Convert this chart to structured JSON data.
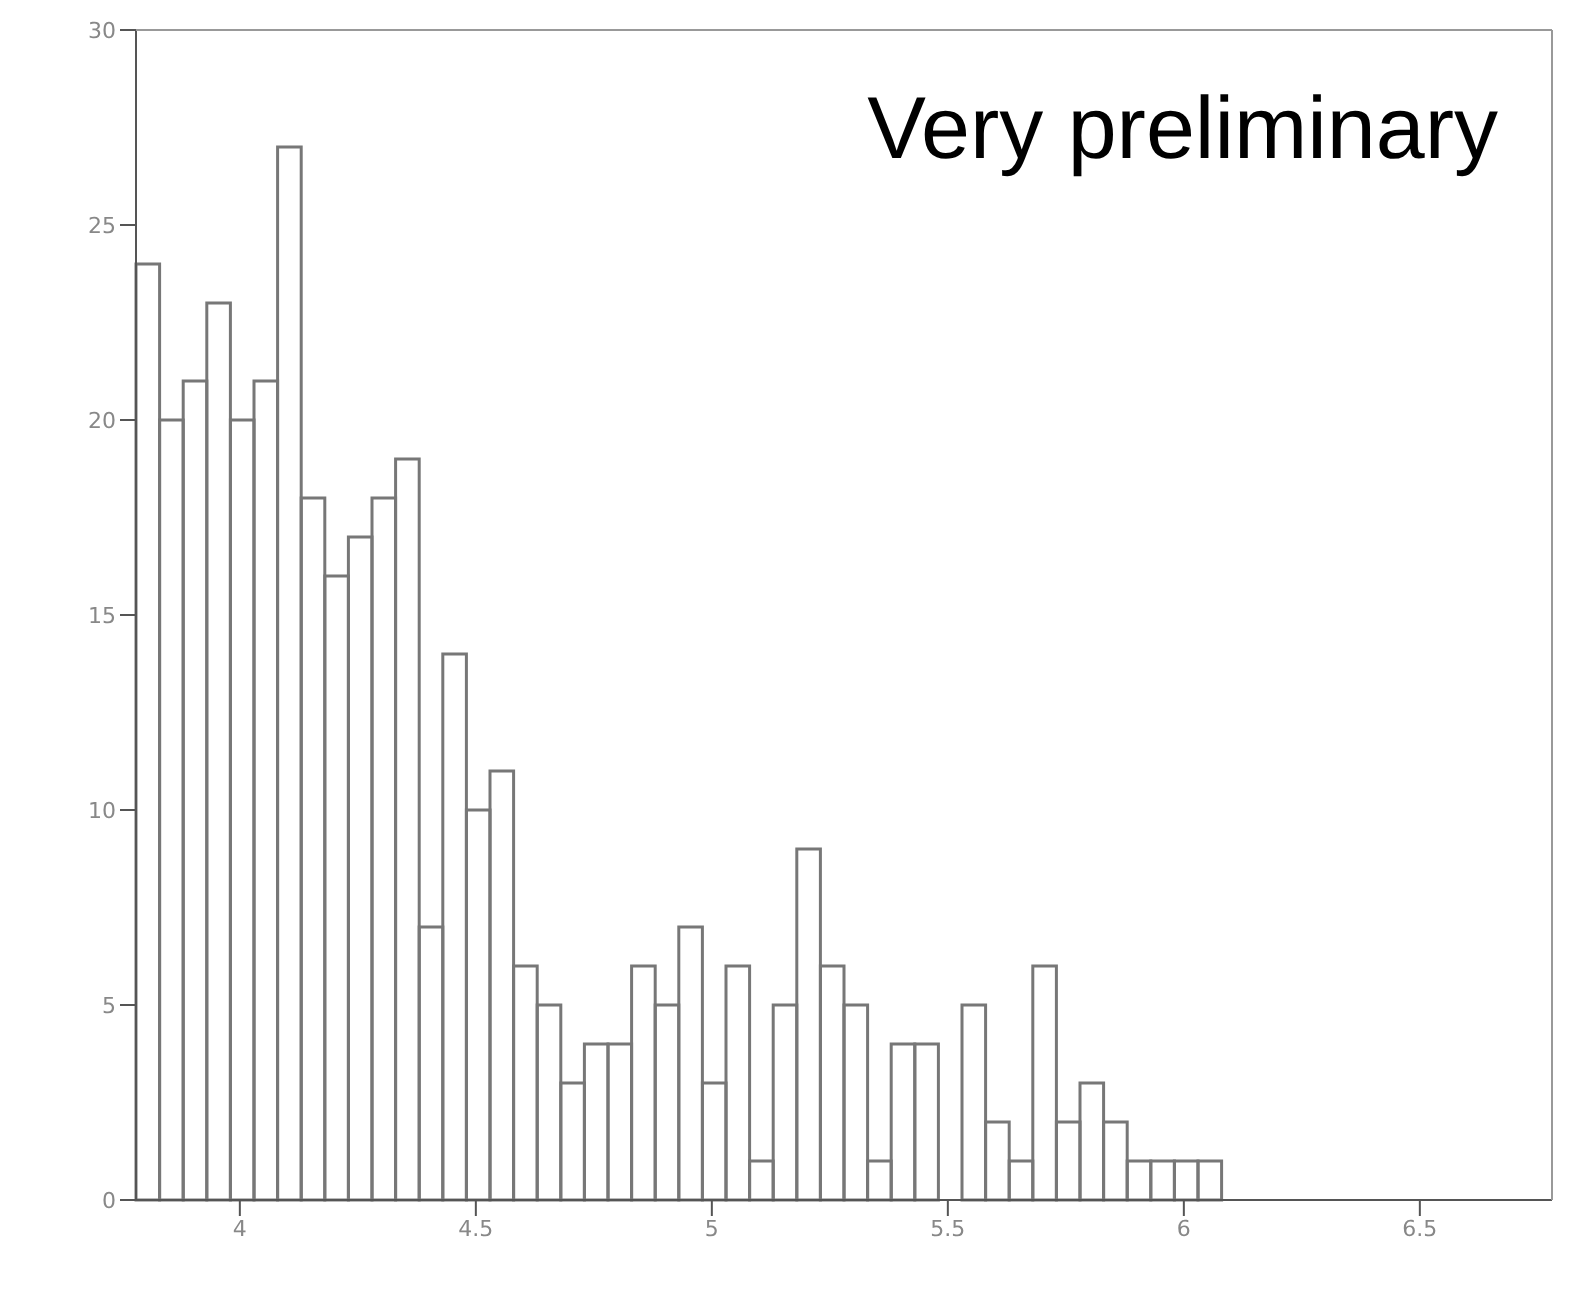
{
  "chart_data": {
    "type": "histogram",
    "bins": [
      3.78,
      3.83,
      3.88,
      3.93,
      3.98,
      4.03,
      4.08,
      4.13,
      4.18,
      4.23,
      4.28,
      4.33,
      4.38,
      4.43,
      4.48,
      4.53,
      4.58,
      4.63,
      4.68,
      4.73,
      4.78,
      4.83,
      4.88,
      4.93,
      4.98,
      5.03,
      5.08,
      5.13,
      5.18,
      5.23,
      5.28,
      5.33,
      5.38,
      5.43,
      5.48,
      5.53,
      5.58,
      5.63,
      5.68,
      5.73,
      5.78,
      5.83,
      5.88,
      5.93,
      5.98,
      6.03,
      6.08
    ],
    "values": [
      24,
      20,
      21,
      23,
      20,
      21,
      27,
      18,
      16,
      17,
      18,
      19,
      7,
      14,
      10,
      11,
      6,
      5,
      3,
      4,
      4,
      6,
      5,
      7,
      3,
      6,
      1,
      5,
      9,
      6,
      5,
      1,
      4,
      4,
      0,
      5,
      2,
      1,
      6,
      2,
      3,
      2,
      1,
      1,
      1,
      1
    ],
    "color": "#777777",
    "xlim": [
      3.78,
      6.78
    ],
    "xticks": [
      4,
      4.5,
      5,
      5.5,
      6,
      6.5
    ],
    "ylim": [
      0,
      30
    ],
    "yticks": [
      0,
      5,
      10,
      15,
      20,
      25,
      30
    ],
    "grid": false,
    "annotations": [
      "Very preliminary"
    ]
  }
}
